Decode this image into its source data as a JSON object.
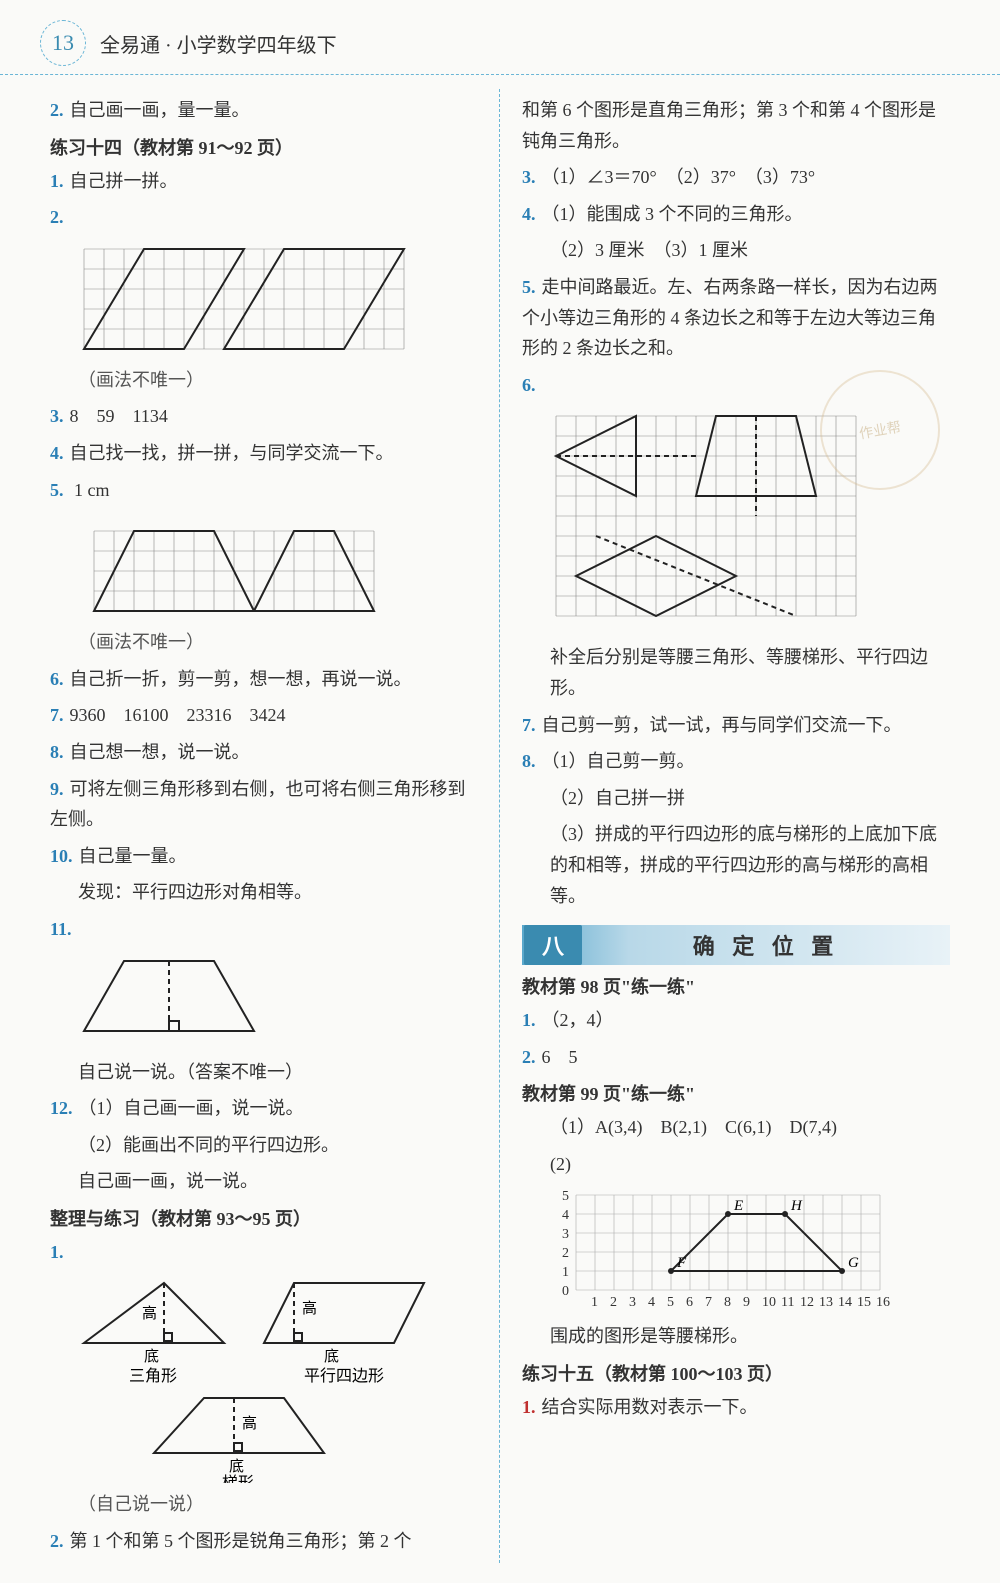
{
  "header": {
    "page_number": "13",
    "title": "全易通 · 小学数学四年级下"
  },
  "left": {
    "q2_intro": "自己画一画，量一量。",
    "section14": "练习十四（教材第 91～92 页）",
    "q1": "自己拼一拼。",
    "q2_note": "（画法不唯一）",
    "q3": "8　59　1134",
    "q4": "自己找一找，拼一拼，与同学交流一下。",
    "q5_label": "1 cm",
    "q5_note": "（画法不唯一）",
    "q6": "自己折一折，剪一剪，想一想，再说一说。",
    "q7": "9360　16100　23316　3424",
    "q8": "自己想一想，说一说。",
    "q9": "可将左侧三角形移到右侧，也可将右侧三角形移到左侧。",
    "q10a": "自己量一量。",
    "q10b": "发现：平行四边形对角相等。",
    "q11_note": "自己说一说。（答案不唯一）",
    "q12_1": "（1）自己画一画，说一说。",
    "q12_2": "（2）能画出不同的平行四边形。",
    "q12_3": "自己画一画，说一说。",
    "section_zl": "整理与练习（教材第 93～95 页）",
    "shape1_labels": {
      "gao": "高",
      "di": "底",
      "tri": "三角形",
      "para": "平行四边形",
      "trap": "梯形"
    },
    "zl_note": "（自己说一说）",
    "zl_q2": "第 1 个和第 5 个图形是锐角三角形；第 2 个",
    "fig2": {
      "grid_cols": 16,
      "grid_rows": 5,
      "cell": 20,
      "parallelogram1": [
        [
          3,
          0
        ],
        [
          8,
          0
        ],
        [
          5,
          5
        ],
        [
          0,
          5
        ]
      ],
      "parallelogram2": [
        [
          10,
          0
        ],
        [
          16,
          0
        ],
        [
          13,
          5
        ],
        [
          7,
          5
        ]
      ]
    },
    "fig5": {
      "grid_cols": 14,
      "grid_rows": 4,
      "cell": 20,
      "trap1": [
        [
          2,
          0
        ],
        [
          6,
          0
        ],
        [
          8,
          4
        ],
        [
          0,
          4
        ]
      ],
      "trap2": [
        [
          10,
          0
        ],
        [
          12,
          0
        ],
        [
          14,
          4
        ],
        [
          8,
          4
        ]
      ]
    },
    "fig11": {
      "w": 180,
      "h": 90
    }
  },
  "right": {
    "cont": "和第 6 个图形是直角三角形；第 3 个和第 4 个图形是钝角三角形。",
    "q3": "（1）∠3＝70°　（2）37°　（3）73°",
    "q4_1": "（1）能围成 3 个不同的三角形。",
    "q4_2": "（2）3 厘米　（3）1 厘米",
    "q5": "走中间路最近。左、右两条路一样长，因为右边两个小等边三角形的 4 条边长之和等于左边大等边三角形的 2 条边长之和。",
    "fig6": {
      "grid_cols": 15,
      "grid_rows": 10,
      "cell": 20
    },
    "q6_note": "补全后分别是等腰三角形、等腰梯形、平行四边形。",
    "q7": "自己剪一剪，试一试，再与同学们交流一下。",
    "q8_1": "（1）自己剪一剪。",
    "q8_2": "（2）自己拼一拼",
    "q8_3": "（3）拼成的平行四边形的底与梯形的上底加下底的和相等，拼成的平行四边形的高与梯形的高相等。",
    "chapter": {
      "badge": "八",
      "title": "确 定 位 置"
    },
    "p98": "教材第 98 页\"练一练\"",
    "p98_q1": "（2，4）",
    "p98_q2": "6　5",
    "p99": "教材第 99 页\"练一练\"",
    "p99_1": "（1）A(3,4)　B(2,1)　C(6,1)　D(7,4)",
    "p99_2_label": "(2)",
    "p99_2_note": "围成的图形是等腰梯形。",
    "chart": {
      "xmax": 16,
      "ymax": 5,
      "points": {
        "E": [
          8,
          4
        ],
        "H": [
          11,
          4
        ],
        "F": [
          5,
          1
        ],
        "G": [
          14,
          1
        ]
      },
      "cell": 19
    },
    "section15": "练习十五（教材第 100～103 页）",
    "s15_q1": "结合实际用数对表示一下。"
  },
  "colors": {
    "blue": "#2a7fb5",
    "red": "#c03030",
    "line": "#888",
    "shape": "#222"
  }
}
